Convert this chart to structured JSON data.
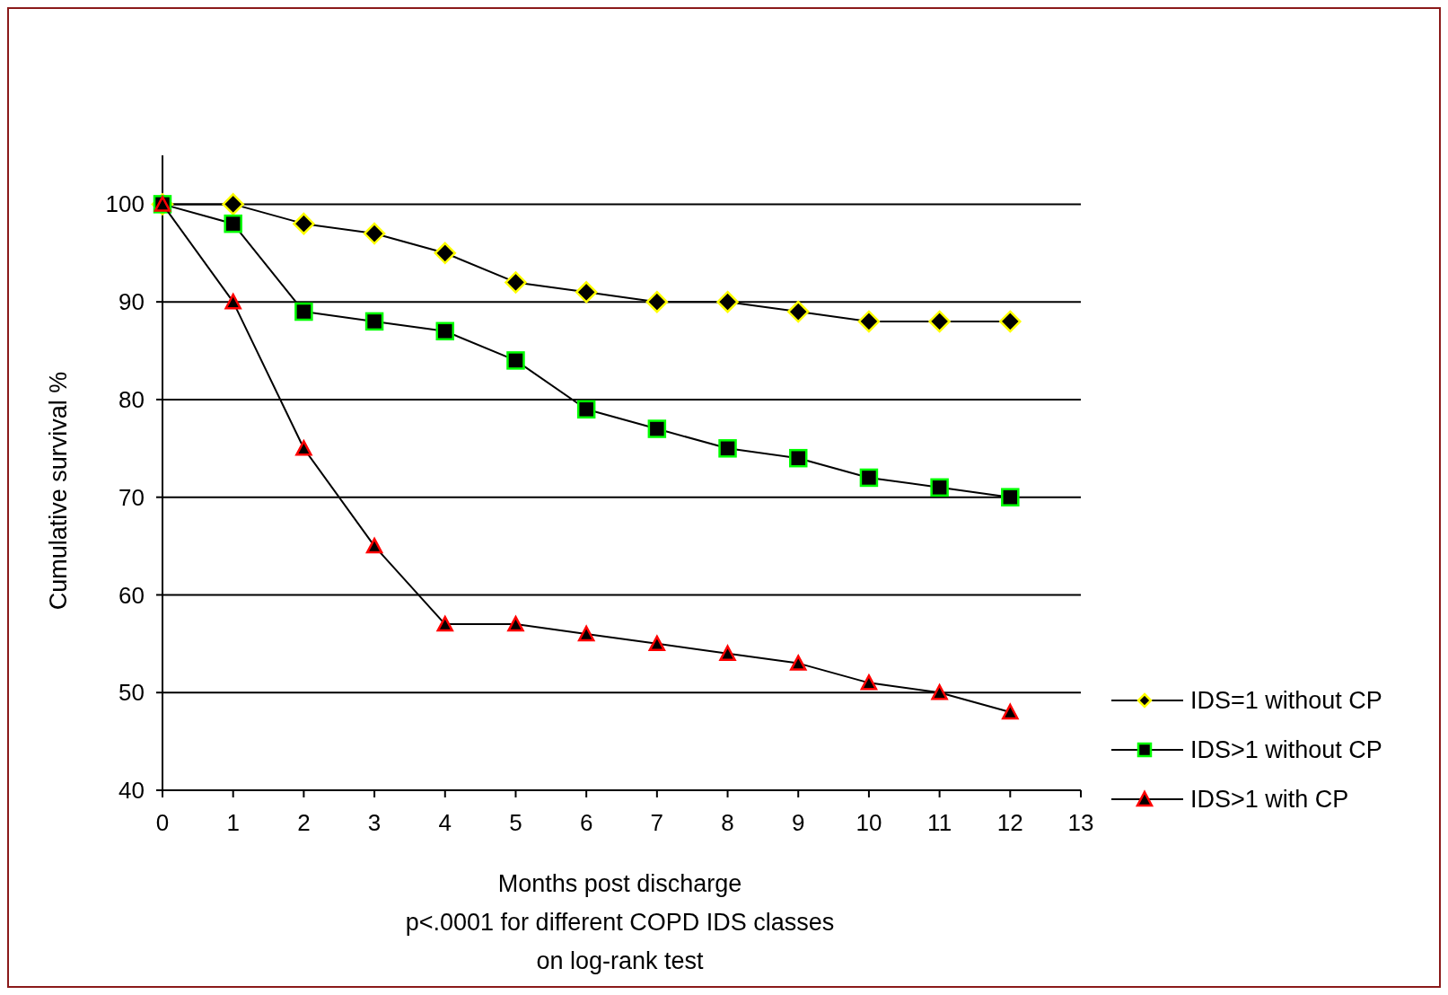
{
  "chart_data": {
    "type": "line",
    "xlabel": "Months post discharge",
    "ylabel": "Cumulative survival %",
    "annotations": [
      "p<.0001 for different COPD IDS classes",
      "on log-rank test"
    ],
    "x": [
      0,
      1,
      2,
      3,
      4,
      5,
      6,
      7,
      8,
      9,
      10,
      11,
      12
    ],
    "series": [
      {
        "name": "IDS=1 without CP",
        "color": "#ffff00",
        "marker": "diamond",
        "values": [
          100,
          100,
          98,
          97,
          95,
          92,
          91,
          90,
          90,
          89,
          88,
          88,
          88
        ]
      },
      {
        "name": "IDS>1 without CP",
        "color": "#00ff00",
        "marker": "square",
        "values": [
          100,
          98,
          89,
          88,
          87,
          84,
          79,
          77,
          75,
          74,
          72,
          71,
          70
        ]
      },
      {
        "name": "IDS>1 with CP",
        "color": "#ff0000",
        "marker": "triangle",
        "values": [
          100,
          90,
          75,
          65,
          57,
          57,
          56,
          55,
          54,
          53,
          51,
          50,
          48
        ]
      }
    ],
    "xlim": [
      0,
      13
    ],
    "xticks": [
      0,
      1,
      2,
      3,
      4,
      5,
      6,
      7,
      8,
      9,
      10,
      11,
      12,
      13
    ],
    "ylim": [
      40,
      105
    ],
    "yticks": [
      40,
      50,
      60,
      70,
      80,
      90,
      100
    ],
    "grid": "y",
    "legend": "right",
    "line_style": "solid"
  }
}
